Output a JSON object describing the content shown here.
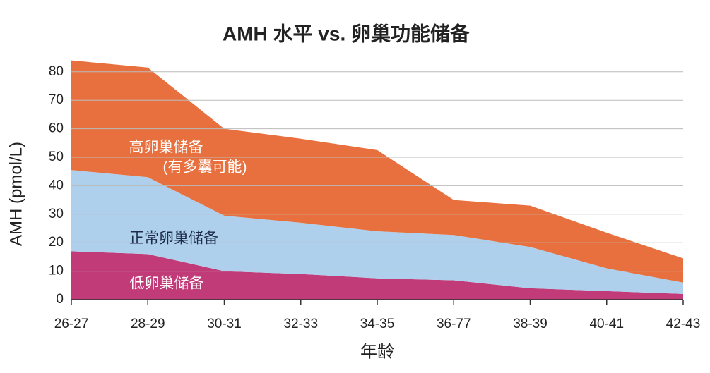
{
  "chart_data": {
    "type": "stacked_area",
    "title": "AMH 水平 vs. 卵巢功能储备",
    "y_label": "AMH (pmol/L)",
    "x_label": "年龄",
    "annotation": "(有多囊可能)",
    "categories": [
      "26-27",
      "28-29",
      "30-31",
      "32-33",
      "34-35",
      "36-77",
      "38-39",
      "40-41",
      "42-43"
    ],
    "series": [
      {
        "name": "低卵巢储备",
        "color": "#c13b78",
        "values": [
          17,
          16,
          10,
          9,
          7.5,
          6.8,
          4,
          3,
          2
        ]
      },
      {
        "name": "正常卵巢储备",
        "color": "#aed0ec",
        "values": [
          28.5,
          27,
          19.5,
          18,
          16.5,
          15.9,
          14.5,
          8,
          4
        ]
      },
      {
        "name": "高卵巢储备",
        "color": "#e8703f",
        "values": [
          38.5,
          38.5,
          30.5,
          29.5,
          28.5,
          12.3,
          14.5,
          12.5,
          8.5
        ]
      }
    ],
    "ylim": [
      0,
      85
    ],
    "yticks": [
      0,
      10,
      20,
      30,
      40,
      50,
      60,
      70,
      80
    ],
    "grid": true
  }
}
